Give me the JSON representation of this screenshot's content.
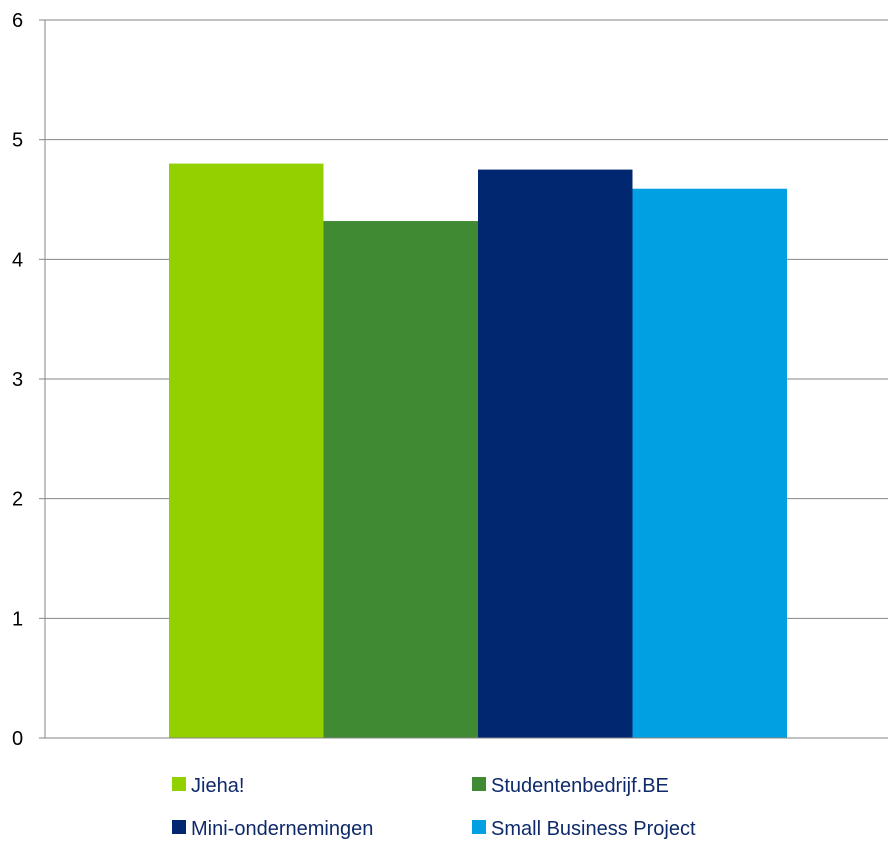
{
  "chart_data": {
    "type": "bar",
    "categories": [
      ""
    ],
    "series": [
      {
        "name": "Jieha!",
        "values": [
          4.8
        ],
        "color": "#92d000"
      },
      {
        "name": "Studentenbedrijf.BE",
        "values": [
          4.32
        ],
        "color": "#3f8a32"
      },
      {
        "name": "Mini-ondernemingen",
        "values": [
          4.75
        ],
        "color": "#002770"
      },
      {
        "name": "Small Business Project",
        "values": [
          4.59
        ],
        "color": "#00a0e3"
      }
    ],
    "ylim": [
      0,
      6
    ],
    "yticks": [
      "0",
      "1",
      "2",
      "3",
      "4",
      "5",
      "6"
    ],
    "grid": true,
    "legend_position": "bottom",
    "title": "",
    "xlabel": "",
    "ylabel": ""
  }
}
